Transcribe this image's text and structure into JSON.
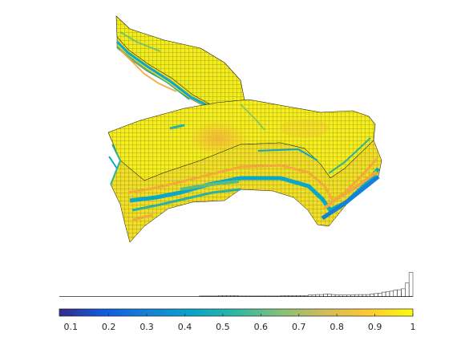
{
  "figure": {
    "view_type": "3D reservoir grid with colorbar and histogram",
    "colormap": "parula",
    "colormap_stops": [
      "#352a87",
      "#0f5cdd",
      "#1481d6",
      "#06a4ca",
      "#2eb7a4",
      "#87bf77",
      "#d1bb59",
      "#fec832",
      "#f9fb0e"
    ],
    "grid_line_color": "#1a1a1a"
  },
  "colorbar": {
    "range": [
      0.07,
      1.0
    ],
    "ticks": [
      "0.1",
      "0.2",
      "0.3",
      "0.4",
      "0.5",
      "0.6",
      "0.7",
      "0.8",
      "0.9",
      "1"
    ],
    "tick_values": [
      0.1,
      0.2,
      0.3,
      0.4,
      0.5,
      0.6,
      0.7,
      0.8,
      0.9,
      1.0
    ]
  },
  "histogram": {
    "bin_range": [
      0.07,
      1.0
    ],
    "counts": [
      0,
      0,
      0,
      0,
      0,
      0,
      0,
      0,
      0,
      0,
      0,
      0,
      0,
      0,
      0,
      0,
      0,
      0,
      0,
      0,
      0,
      0,
      0,
      0,
      0,
      0,
      0,
      0,
      0,
      0,
      0,
      0,
      0,
      0,
      0,
      0,
      1,
      1,
      1,
      1,
      1,
      2,
      2,
      2,
      2,
      2,
      1,
      1,
      1,
      1,
      1,
      1,
      1,
      1,
      1,
      1,
      1,
      2,
      2,
      2,
      2,
      2,
      2,
      2,
      3,
      3,
      4,
      4,
      5,
      5,
      4,
      3,
      3,
      3,
      3,
      3,
      4,
      4,
      4,
      4,
      5,
      6,
      7,
      9,
      10,
      11,
      13,
      14,
      16,
      28,
      50
    ]
  }
}
